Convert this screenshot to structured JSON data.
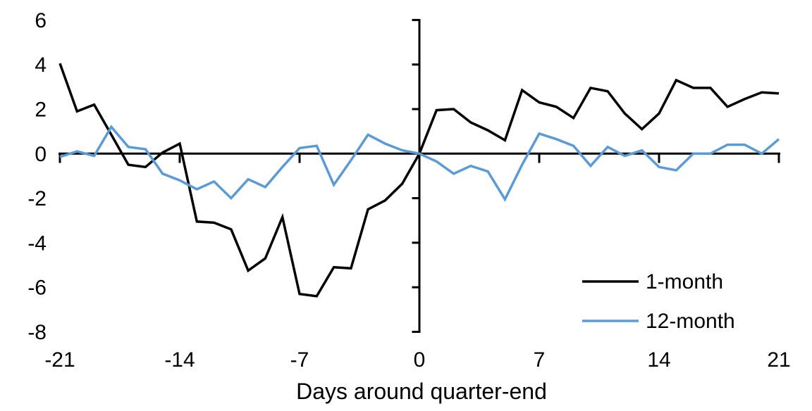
{
  "chart_data": {
    "type": "line",
    "title": "",
    "xlabel": "Days around quarter-end",
    "ylabel": "",
    "xlim": [
      -21,
      21
    ],
    "ylim": [
      -8,
      6
    ],
    "grid": false,
    "legend_position": "bottom-right",
    "xticks": [
      -21,
      -14,
      -7,
      0,
      7,
      14,
      21
    ],
    "yticks": [
      6,
      4,
      2,
      0,
      -2,
      -4,
      -6,
      -8
    ],
    "x": [
      -21,
      -20,
      -19,
      -18,
      -17,
      -16,
      -15,
      -14,
      -13,
      -12,
      -11,
      -10,
      -9,
      -8,
      -7,
      -6,
      -5,
      -4,
      -3,
      -2,
      -1,
      0,
      1,
      2,
      3,
      4,
      5,
      6,
      7,
      8,
      9,
      10,
      11,
      12,
      13,
      14,
      15,
      16,
      17,
      18,
      19,
      20,
      21
    ],
    "series": [
      {
        "name": "1-month",
        "color": "#000000",
        "values": [
          4.05,
          1.9,
          2.2,
          0.85,
          -0.5,
          -0.6,
          0.05,
          0.45,
          -3.05,
          -3.1,
          -3.4,
          -5.25,
          -4.7,
          -2.85,
          -6.3,
          -6.4,
          -5.1,
          -5.15,
          -2.5,
          -2.1,
          -1.35,
          0,
          1.95,
          2.0,
          1.4,
          1.05,
          0.6,
          2.85,
          2.3,
          2.1,
          1.6,
          2.95,
          2.8,
          1.8,
          1.1,
          1.8,
          3.3,
          2.95,
          2.95,
          2.1,
          2.45,
          2.75,
          2.7
        ]
      },
      {
        "name": "12-month",
        "color": "#5B9BD5",
        "values": [
          -0.15,
          0.1,
          -0.1,
          1.2,
          0.3,
          0.2,
          -0.9,
          -1.2,
          -1.6,
          -1.25,
          -2.0,
          -1.15,
          -1.5,
          -0.6,
          0.25,
          0.35,
          -1.4,
          -0.3,
          0.85,
          0.45,
          0.15,
          0,
          -0.35,
          -0.9,
          -0.55,
          -0.8,
          -2.05,
          -0.5,
          0.9,
          0.65,
          0.35,
          -0.55,
          0.3,
          -0.1,
          0.15,
          -0.6,
          -0.75,
          0.0,
          0.0,
          0.4,
          0.4,
          0.0,
          0.65
        ]
      }
    ]
  }
}
